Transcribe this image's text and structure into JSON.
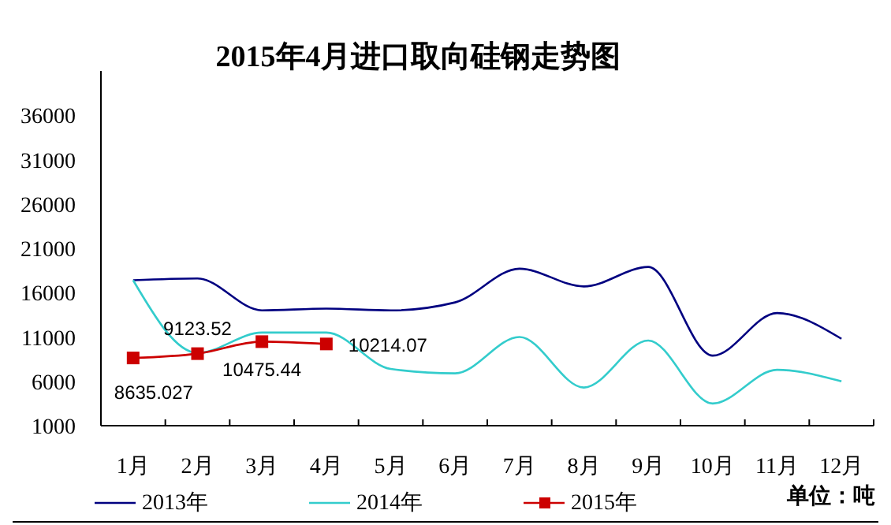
{
  "chart_data": {
    "type": "line",
    "title": "2015年4月进口取向硅钢走势图",
    "categories": [
      "1月",
      "2月",
      "3月",
      "4月",
      "5月",
      "6月",
      "7月",
      "8月",
      "9月",
      "10月",
      "11月",
      "12月"
    ],
    "series": [
      {
        "name": "2013年",
        "color": "#000080",
        "marker": "none",
        "values": [
          17400,
          17600,
          14000,
          14200,
          14000,
          14900,
          18700,
          16700,
          18900,
          8900,
          13700,
          10800
        ]
      },
      {
        "name": "2014年",
        "color": "#33cccc",
        "marker": "none",
        "values": [
          17400,
          9200,
          11500,
          11500,
          7400,
          6900,
          11000,
          5300,
          10600,
          3500,
          7300,
          6000
        ]
      },
      {
        "name": "2015年",
        "color": "#cc0000",
        "marker": "square",
        "values": [
          8635.027,
          9123.52,
          10475.44,
          10214.07,
          null,
          null,
          null,
          null,
          null,
          null,
          null,
          null
        ],
        "value_labels": [
          "8635.027",
          "9123.52",
          "10475.44",
          "10214.07",
          null,
          null,
          null,
          null,
          null,
          null,
          null,
          null
        ]
      }
    ],
    "ylim": [
      1000,
      41000
    ],
    "yticks": [
      1000,
      6000,
      11000,
      16000,
      21000,
      26000,
      31000,
      36000
    ],
    "grid": false,
    "legend": "bottom",
    "line_style": "solid",
    "annotations": [
      "单位：吨"
    ]
  }
}
